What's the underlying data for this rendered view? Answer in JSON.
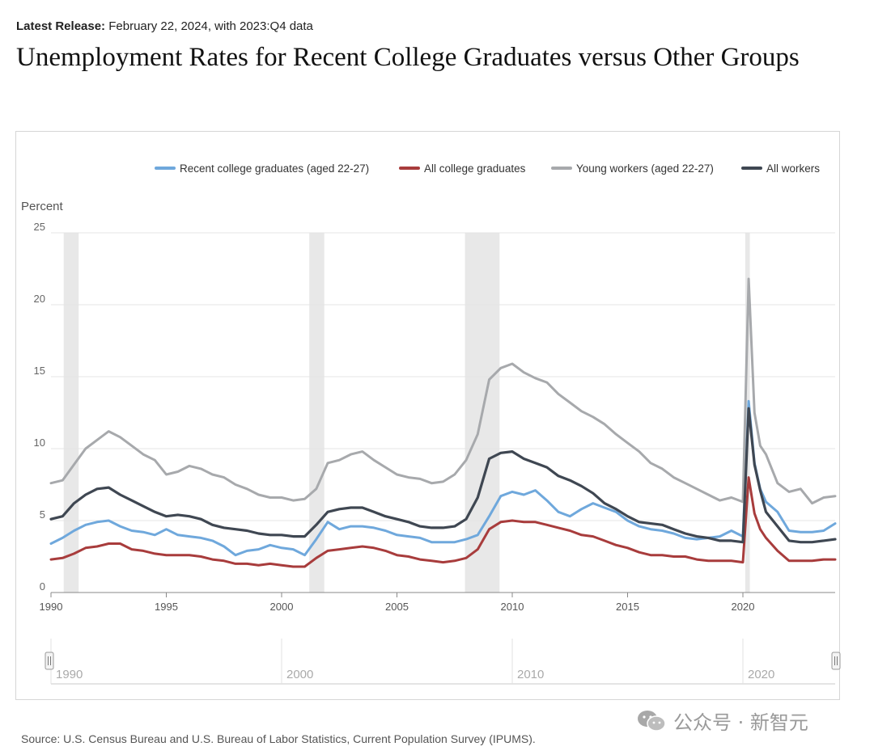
{
  "header": {
    "release_label": "Latest Release:",
    "release_text": "February 22, 2024, with 2023:Q4 data",
    "title": "Unemployment Rates for Recent College Graduates versus Other Groups"
  },
  "footer": {
    "source": "Source: U.S. Census Bureau and U.S. Bureau of Labor Statistics, Current Population Survey (IPUMS).",
    "watermark": "公众号 · 新智元"
  },
  "chart_data": {
    "type": "line",
    "ylabel": "Percent",
    "xlabel": "",
    "ylim": [
      0,
      25
    ],
    "xlim": [
      1990,
      2024
    ],
    "yticks": [
      0,
      5,
      10,
      15,
      20,
      25
    ],
    "xticks": [
      1990,
      1995,
      2000,
      2005,
      2010,
      2015,
      2020
    ],
    "navigator_ticks": [
      1990,
      2000,
      2010,
      2020
    ],
    "grid": true,
    "legend_position": "top-right",
    "recessions": [
      [
        1990.55,
        1991.2
      ],
      [
        2001.2,
        2001.85
      ],
      [
        2007.95,
        2009.45
      ],
      [
        2020.1,
        2020.3
      ]
    ],
    "series": [
      {
        "name": "Recent college graduates (aged 22-27)",
        "color": "#6fa8dc",
        "x": [
          1990,
          1990.5,
          1991,
          1991.5,
          1992,
          1992.5,
          1993,
          1993.5,
          1994,
          1994.5,
          1995,
          1995.5,
          1996,
          1996.5,
          1997,
          1997.5,
          1998,
          1998.5,
          1999,
          1999.5,
          2000,
          2000.5,
          2001,
          2001.5,
          2002,
          2002.5,
          2003,
          2003.5,
          2004,
          2004.5,
          2005,
          2005.5,
          2006,
          2006.5,
          2007,
          2007.5,
          2008,
          2008.5,
          2009,
          2009.5,
          2010,
          2010.5,
          2011,
          2011.5,
          2012,
          2012.5,
          2013,
          2013.5,
          2014,
          2014.5,
          2015,
          2015.5,
          2016,
          2016.5,
          2017,
          2017.5,
          2018,
          2018.5,
          2019,
          2019.5,
          2020,
          2020.25,
          2020.5,
          2020.75,
          2021,
          2021.5,
          2022,
          2022.5,
          2023,
          2023.5,
          2024
        ],
        "values": [
          3.4,
          3.8,
          4.3,
          4.7,
          4.9,
          5.0,
          4.6,
          4.3,
          4.2,
          4.0,
          4.4,
          4.0,
          3.9,
          3.8,
          3.6,
          3.2,
          2.6,
          2.9,
          3.0,
          3.3,
          3.1,
          3.0,
          2.6,
          3.7,
          4.9,
          4.4,
          4.6,
          4.6,
          4.5,
          4.3,
          4.0,
          3.9,
          3.8,
          3.5,
          3.5,
          3.5,
          3.7,
          4.0,
          5.3,
          6.7,
          7.0,
          6.8,
          7.1,
          6.4,
          5.6,
          5.3,
          5.8,
          6.2,
          5.9,
          5.6,
          5.0,
          4.6,
          4.4,
          4.3,
          4.1,
          3.8,
          3.7,
          3.8,
          3.9,
          4.3,
          3.9,
          13.3,
          9.0,
          7.2,
          6.3,
          5.6,
          4.3,
          4.2,
          4.2,
          4.3,
          4.8
        ]
      },
      {
        "name": "All college graduates",
        "color": "#a83c3c",
        "x": [
          1990,
          1990.5,
          1991,
          1991.5,
          1992,
          1992.5,
          1993,
          1993.5,
          1994,
          1994.5,
          1995,
          1995.5,
          1996,
          1996.5,
          1997,
          1997.5,
          1998,
          1998.5,
          1999,
          1999.5,
          2000,
          2000.5,
          2001,
          2001.5,
          2002,
          2002.5,
          2003,
          2003.5,
          2004,
          2004.5,
          2005,
          2005.5,
          2006,
          2006.5,
          2007,
          2007.5,
          2008,
          2008.5,
          2009,
          2009.5,
          2010,
          2010.5,
          2011,
          2011.5,
          2012,
          2012.5,
          2013,
          2013.5,
          2014,
          2014.5,
          2015,
          2015.5,
          2016,
          2016.5,
          2017,
          2017.5,
          2018,
          2018.5,
          2019,
          2019.5,
          2020,
          2020.25,
          2020.5,
          2020.75,
          2021,
          2021.5,
          2022,
          2022.5,
          2023,
          2023.5,
          2024
        ],
        "values": [
          2.3,
          2.4,
          2.7,
          3.1,
          3.2,
          3.4,
          3.4,
          3.0,
          2.9,
          2.7,
          2.6,
          2.6,
          2.6,
          2.5,
          2.3,
          2.2,
          2.0,
          2.0,
          1.9,
          2.0,
          1.9,
          1.8,
          1.8,
          2.4,
          2.9,
          3.0,
          3.1,
          3.2,
          3.1,
          2.9,
          2.6,
          2.5,
          2.3,
          2.2,
          2.1,
          2.2,
          2.4,
          3.0,
          4.4,
          4.9,
          5.0,
          4.9,
          4.9,
          4.7,
          4.5,
          4.3,
          4.0,
          3.9,
          3.6,
          3.3,
          3.1,
          2.8,
          2.6,
          2.6,
          2.5,
          2.5,
          2.3,
          2.2,
          2.2,
          2.2,
          2.1,
          8.0,
          5.5,
          4.4,
          3.8,
          2.9,
          2.2,
          2.2,
          2.2,
          2.3,
          2.3
        ]
      },
      {
        "name": "Young workers (aged 22-27)",
        "color": "#a7a9ac",
        "x": [
          1990,
          1990.5,
          1991,
          1991.5,
          1992,
          1992.5,
          1993,
          1993.5,
          1994,
          1994.5,
          1995,
          1995.5,
          1996,
          1996.5,
          1997,
          1997.5,
          1998,
          1998.5,
          1999,
          1999.5,
          2000,
          2000.5,
          2001,
          2001.5,
          2002,
          2002.5,
          2003,
          2003.5,
          2004,
          2004.5,
          2005,
          2005.5,
          2006,
          2006.5,
          2007,
          2007.5,
          2008,
          2008.5,
          2009,
          2009.5,
          2010,
          2010.5,
          2011,
          2011.5,
          2012,
          2012.5,
          2013,
          2013.5,
          2014,
          2014.5,
          2015,
          2015.5,
          2016,
          2016.5,
          2017,
          2017.5,
          2018,
          2018.5,
          2019,
          2019.5,
          2020,
          2020.25,
          2020.5,
          2020.75,
          2021,
          2021.5,
          2022,
          2022.5,
          2023,
          2023.5,
          2024
        ],
        "values": [
          7.6,
          7.8,
          8.9,
          10.0,
          10.6,
          11.2,
          10.8,
          10.2,
          9.6,
          9.2,
          8.2,
          8.4,
          8.8,
          8.6,
          8.2,
          8.0,
          7.5,
          7.2,
          6.8,
          6.6,
          6.6,
          6.4,
          6.5,
          7.2,
          9.0,
          9.2,
          9.6,
          9.8,
          9.2,
          8.7,
          8.2,
          8.0,
          7.9,
          7.6,
          7.7,
          8.2,
          9.2,
          11.0,
          14.8,
          15.6,
          15.9,
          15.3,
          14.9,
          14.6,
          13.8,
          13.2,
          12.6,
          12.2,
          11.7,
          11.0,
          10.4,
          9.8,
          9.0,
          8.6,
          8.0,
          7.6,
          7.2,
          6.8,
          6.4,
          6.6,
          6.3,
          21.8,
          12.5,
          10.2,
          9.6,
          7.6,
          7.0,
          7.2,
          6.2,
          6.6,
          6.7
        ]
      },
      {
        "name": "All workers",
        "color": "#3f4752",
        "x": [
          1990,
          1990.5,
          1991,
          1991.5,
          1992,
          1992.5,
          1993,
          1993.5,
          1994,
          1994.5,
          1995,
          1995.5,
          1996,
          1996.5,
          1997,
          1997.5,
          1998,
          1998.5,
          1999,
          1999.5,
          2000,
          2000.5,
          2001,
          2001.5,
          2002,
          2002.5,
          2003,
          2003.5,
          2004,
          2004.5,
          2005,
          2005.5,
          2006,
          2006.5,
          2007,
          2007.5,
          2008,
          2008.5,
          2009,
          2009.5,
          2010,
          2010.5,
          2011,
          2011.5,
          2012,
          2012.5,
          2013,
          2013.5,
          2014,
          2014.5,
          2015,
          2015.5,
          2016,
          2016.5,
          2017,
          2017.5,
          2018,
          2018.5,
          2019,
          2019.5,
          2020,
          2020.25,
          2020.5,
          2020.75,
          2021,
          2021.5,
          2022,
          2022.5,
          2023,
          2023.5,
          2024
        ],
        "values": [
          5.1,
          5.3,
          6.2,
          6.8,
          7.2,
          7.3,
          6.8,
          6.4,
          6.0,
          5.6,
          5.3,
          5.4,
          5.3,
          5.1,
          4.7,
          4.5,
          4.4,
          4.3,
          4.1,
          4.0,
          4.0,
          3.9,
          3.9,
          4.7,
          5.6,
          5.8,
          5.9,
          5.9,
          5.6,
          5.3,
          5.1,
          4.9,
          4.6,
          4.5,
          4.5,
          4.6,
          5.1,
          6.6,
          9.3,
          9.7,
          9.8,
          9.3,
          9.0,
          8.7,
          8.1,
          7.8,
          7.4,
          6.9,
          6.2,
          5.8,
          5.3,
          4.9,
          4.8,
          4.7,
          4.4,
          4.1,
          3.9,
          3.8,
          3.6,
          3.6,
          3.5,
          12.8,
          8.9,
          7.1,
          5.6,
          4.6,
          3.6,
          3.5,
          3.5,
          3.6,
          3.7
        ]
      }
    ]
  }
}
